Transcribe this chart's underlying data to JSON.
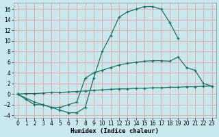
{
  "xlabel": "Humidex (Indice chaleur)",
  "bg_color": "#c8e8ee",
  "grid_color": "#f0a0a0",
  "line_color": "#1a7060",
  "xlim": [
    -0.5,
    23.5
  ],
  "ylim": [
    -4.5,
    17.2
  ],
  "xticks": [
    0,
    1,
    2,
    3,
    4,
    5,
    6,
    7,
    8,
    9,
    10,
    11,
    12,
    13,
    14,
    15,
    16,
    17,
    18,
    19,
    20,
    21,
    22,
    23
  ],
  "yticks": [
    -4,
    -2,
    0,
    2,
    4,
    6,
    8,
    10,
    12,
    14,
    16
  ],
  "curve1_x": [
    0,
    1,
    2,
    3,
    4,
    5,
    6,
    7,
    8,
    9,
    10,
    11,
    12,
    13,
    14,
    15,
    16,
    17,
    18,
    19
  ],
  "curve1_y": [
    0,
    -1,
    -2,
    -2,
    -2.5,
    -3,
    -3.5,
    -3.5,
    -2.5,
    3,
    8,
    11,
    14.5,
    15.5,
    16,
    16.5,
    16.5,
    16,
    13.5,
    10.5
  ],
  "curve2_x": [
    0,
    2,
    3,
    4,
    5,
    6,
    7,
    8,
    9,
    10,
    11,
    12,
    13,
    14,
    15,
    16,
    17,
    18,
    19,
    20,
    21,
    22,
    23
  ],
  "curve2_y": [
    0,
    -1.5,
    -2,
    -2.5,
    -2.5,
    -2,
    -1.5,
    3,
    4,
    4.5,
    5,
    5.5,
    5.8,
    6,
    6.2,
    6.3,
    6.3,
    6.2,
    7,
    5,
    4.5,
    2,
    1.5
  ],
  "curve3_x": [
    0,
    1,
    2,
    3,
    4,
    5,
    6,
    7,
    8,
    9,
    10,
    11,
    12,
    13,
    14,
    15,
    16,
    17,
    18,
    19,
    20,
    21,
    22,
    23
  ],
  "curve3_y": [
    0,
    0.1,
    0.1,
    0.2,
    0.3,
    0.3,
    0.4,
    0.5,
    0.6,
    0.7,
    0.8,
    0.9,
    1.0,
    1.0,
    1.1,
    1.1,
    1.2,
    1.2,
    1.3,
    1.3,
    1.4,
    1.4,
    1.5,
    1.5
  ]
}
